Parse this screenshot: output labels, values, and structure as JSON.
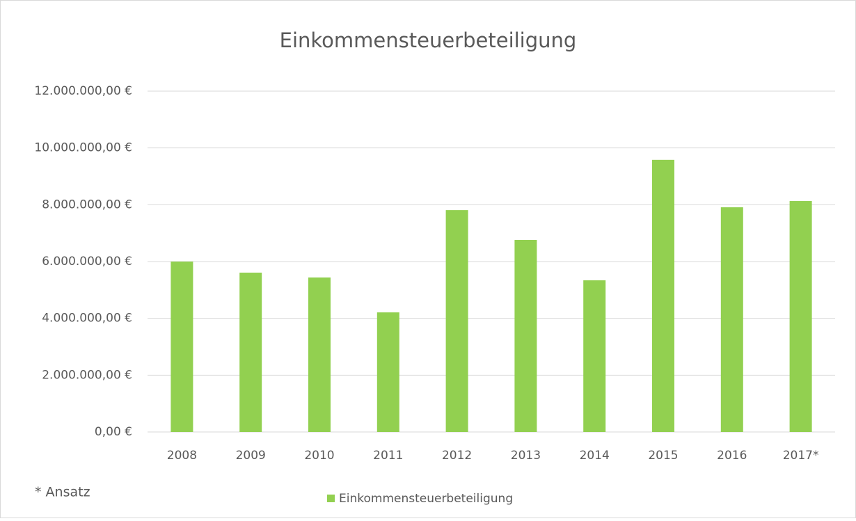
{
  "chart_data": {
    "type": "bar",
    "title": "Einkommensteuerbeteiligung",
    "categories": [
      "2008",
      "2009",
      "2010",
      "2011",
      "2012",
      "2013",
      "2014",
      "2015",
      "2016",
      "2017*"
    ],
    "series": [
      {
        "name": "Einkommensteuerbeteiligung",
        "color": "#92d050",
        "values": [
          6000000,
          5610000,
          5440000,
          4210000,
          7810000,
          6760000,
          5340000,
          9580000,
          7910000,
          8130000
        ]
      }
    ],
    "ylim": [
      0,
      12000000
    ],
    "yticks": [
      {
        "value": 0,
        "label": "0,00 €"
      },
      {
        "value": 2000000,
        "label": "2.000.000,00 €"
      },
      {
        "value": 4000000,
        "label": "4.000.000,00 €"
      },
      {
        "value": 6000000,
        "label": "6.000.000,00 €"
      },
      {
        "value": 8000000,
        "label": "8.000.000,00 €"
      },
      {
        "value": 10000000,
        "label": "10.000.000,00 €"
      },
      {
        "value": 12000000,
        "label": "12.000.000,00 €"
      }
    ],
    "grid": true,
    "legend": "bottom",
    "annotation": "* Ansatz"
  }
}
